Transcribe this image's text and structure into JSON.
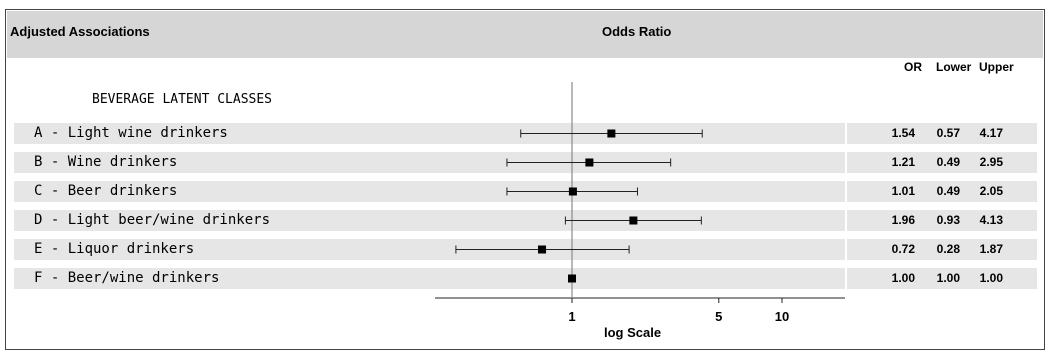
{
  "header": {
    "left_title": "Adjusted Associations",
    "center_title": "Odds Ratio"
  },
  "columns": {
    "or": "OR",
    "lower": "Lower",
    "upper": "Upper"
  },
  "section_label": "BEVERAGE LATENT CLASSES",
  "chart_data": {
    "type": "forest",
    "xlabel": "log Scale",
    "x_scale": "log",
    "xlim": [
      0.28,
      15
    ],
    "xticks": [
      1,
      5,
      10
    ],
    "reference_line": 1,
    "rows": [
      {
        "label": "A - Light wine drinkers",
        "or": "1.54",
        "lower": "0.57",
        "upper": "4.17"
      },
      {
        "label": "B - Wine drinkers",
        "or": "1.21",
        "lower": "0.49",
        "upper": "2.95"
      },
      {
        "label": "C - Beer drinkers",
        "or": "1.01",
        "lower": "0.49",
        "upper": "2.05"
      },
      {
        "label": "D - Light beer/wine drinkers",
        "or": "1.96",
        "lower": "0.93",
        "upper": "4.13"
      },
      {
        "label": "E - Liquor drinkers",
        "or": "0.72",
        "lower": "0.28",
        "upper": "1.87"
      },
      {
        "label": "F - Beer/wine drinkers",
        "or": "1.00",
        "lower": "1.00",
        "upper": "1.00"
      }
    ]
  }
}
